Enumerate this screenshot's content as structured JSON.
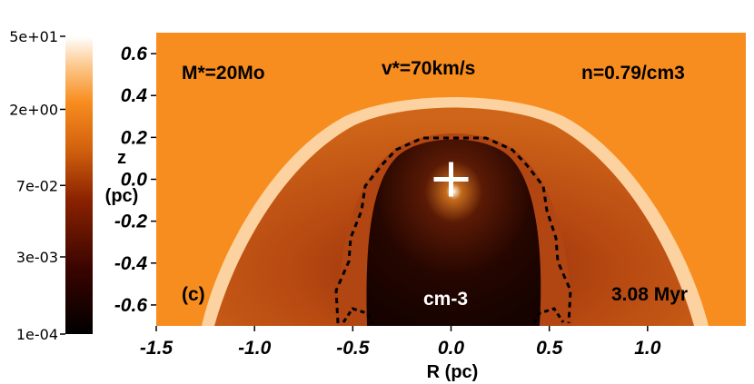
{
  "chart_data": {
    "type": "heatmap",
    "colorbar": {
      "scale": "log",
      "range": [
        0.0001,
        50
      ],
      "tick_labels": [
        "5e+01",
        "2e+00",
        "7e-02",
        "3e-03",
        "1e-04"
      ],
      "colors": {
        "low": "#000000",
        "mid": "#c9580e",
        "high": "#ffffff"
      }
    },
    "xlabel": "R (pc)",
    "ylabel": "z (pc)",
    "xlim": [
      -1.5,
      1.5
    ],
    "ylim": [
      -0.7,
      0.7
    ],
    "x_ticks": [
      -1.5,
      -1.0,
      -0.5,
      0.0,
      0.5,
      1.0
    ],
    "x_tick_labels": [
      "-1.5",
      "-1.0",
      "-0.5",
      "0.0",
      "0.5",
      "1.0"
    ],
    "y_ticks": [
      0.6,
      0.4,
      0.2,
      0.0,
      -0.2,
      -0.4,
      -0.6
    ],
    "y_tick_labels": [
      "0.6",
      "0.4",
      "0.2",
      "0.0",
      "-0.2",
      "-0.4",
      "-0.6"
    ],
    "grid": false,
    "annotations": {
      "mass": "M*=20Mo",
      "velocity": "v*=70km/s",
      "density": "n=0.79/cm3",
      "panel": "(c)",
      "unit": "cm-3",
      "time": "3.08 Myr"
    },
    "star_position": [
      0.0,
      0.0
    ],
    "background_color": "#f88d1f"
  }
}
